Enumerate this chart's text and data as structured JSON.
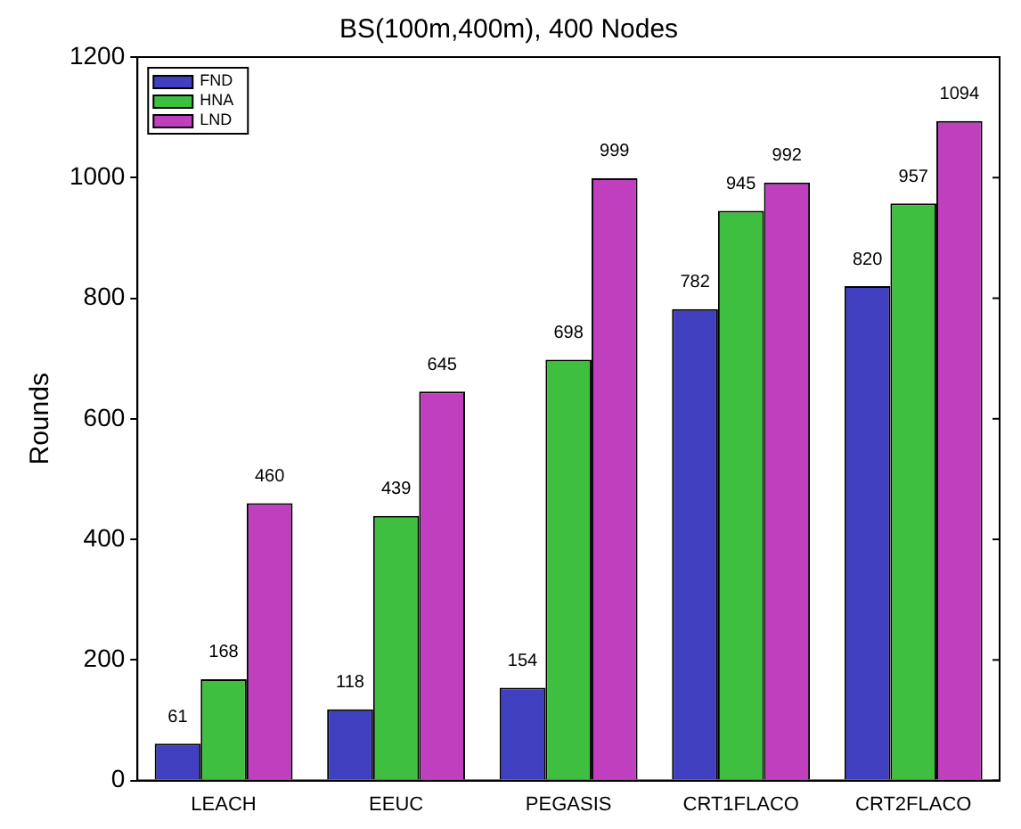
{
  "chart_data": {
    "type": "bar",
    "title": "BS(100m,400m), 400 Nodes",
    "ylabel": "Rounds",
    "categories": [
      "LEACH",
      "EEUC",
      "PEGASIS",
      "CRT1FLACO",
      "CRT2FLACO"
    ],
    "series": [
      {
        "name": "FND",
        "color": "#3f3fbf",
        "values": [
          61,
          118,
          154,
          782,
          820
        ]
      },
      {
        "name": "HNA",
        "color": "#3fbf3f",
        "values": [
          168,
          439,
          698,
          945,
          957
        ]
      },
      {
        "name": "LND",
        "color": "#bf3fbf",
        "values": [
          460,
          645,
          999,
          992,
          1094
        ]
      }
    ],
    "ylim": [
      0,
      1200
    ],
    "yticks": [
      0,
      200,
      400,
      600,
      800,
      1000,
      1200
    ],
    "grid": false,
    "legend": "top left",
    "data_labels": true
  }
}
